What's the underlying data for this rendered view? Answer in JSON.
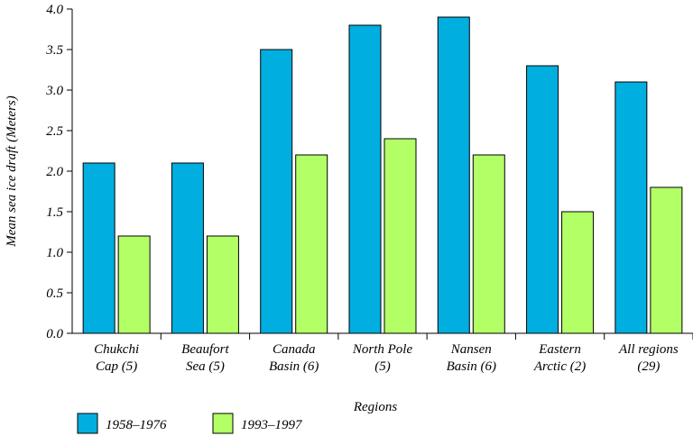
{
  "chart_data": {
    "type": "bar",
    "categories": [
      [
        "Chukchi",
        "Cap (5)"
      ],
      [
        "Beaufort",
        "Sea (5)"
      ],
      [
        "Canada",
        "Basin (6)"
      ],
      [
        "North Pole",
        "(5)"
      ],
      [
        "Nansen",
        "Basin (6)"
      ],
      [
        "Eastern",
        "Arctic (2)"
      ],
      [
        "All regions",
        "(29)"
      ]
    ],
    "series": [
      {
        "name": "1958–1976",
        "color": "#00AEE0",
        "values": [
          2.1,
          2.1,
          3.5,
          3.8,
          3.9,
          3.3,
          3.1
        ]
      },
      {
        "name": "1993–1997",
        "color": "#B2FF66",
        "values": [
          1.2,
          1.2,
          2.2,
          2.4,
          2.2,
          1.5,
          1.8
        ]
      }
    ],
    "xlabel": "Regions",
    "ylabel": "Mean sea ice draft (Meters)",
    "ylim": [
      0,
      4.0
    ],
    "yticks": [
      "0.0",
      "0.5",
      "1.0",
      "1.5",
      "2.0",
      "2.5",
      "3.0",
      "3.5",
      "4.0"
    ],
    "grid": false,
    "legend_position": "bottom-left"
  }
}
